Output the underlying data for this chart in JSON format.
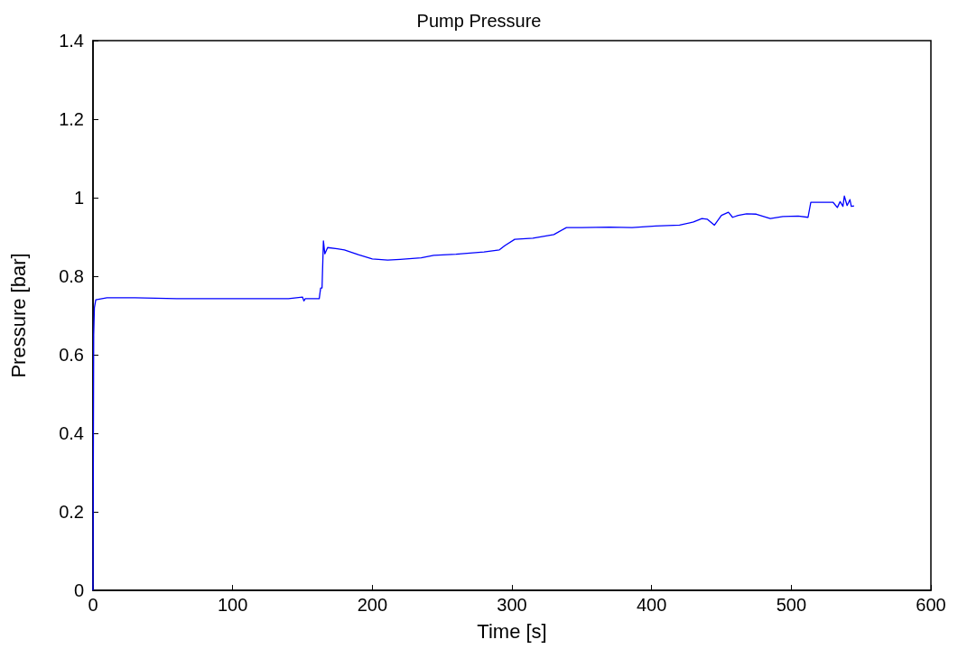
{
  "chart_data": {
    "type": "line",
    "title": "Pump Pressure",
    "xlabel": "Time [s]",
    "ylabel": "Pressure [bar]",
    "x": [
      0,
      0.5,
      1,
      2,
      10,
      30,
      60,
      100,
      140,
      150,
      151,
      152,
      160,
      162,
      163,
      164,
      165,
      166,
      168,
      175,
      180,
      190,
      200,
      211,
      220,
      235,
      244,
      260,
      280,
      291,
      295,
      302,
      315,
      330,
      339,
      350,
      370,
      386,
      403,
      420,
      430,
      436,
      440,
      445,
      450,
      455,
      458,
      462,
      468,
      475,
      485,
      494,
      505,
      512,
      514,
      520,
      530,
      533,
      535,
      537,
      538,
      540,
      542,
      543,
      545
    ],
    "series": [
      {
        "color": "#0000ff",
        "values": [
          0,
          0.65,
          0.72,
          0.74,
          0.745,
          0.745,
          0.743,
          0.743,
          0.743,
          0.747,
          0.737,
          0.743,
          0.743,
          0.743,
          0.77,
          0.77,
          0.89,
          0.857,
          0.873,
          0.87,
          0.867,
          0.855,
          0.844,
          0.841,
          0.843,
          0.847,
          0.853,
          0.856,
          0.862,
          0.867,
          0.878,
          0.894,
          0.897,
          0.906,
          0.924,
          0.924,
          0.925,
          0.924,
          0.928,
          0.93,
          0.938,
          0.947,
          0.945,
          0.93,
          0.955,
          0.963,
          0.95,
          0.955,
          0.959,
          0.958,
          0.947,
          0.952,
          0.953,
          0.95,
          0.988,
          0.988,
          0.988,
          0.975,
          0.99,
          0.978,
          1.004,
          0.98,
          0.995,
          0.978,
          0.979
        ]
      }
    ],
    "xlim": [
      0,
      600
    ],
    "xticks": [
      0,
      100,
      200,
      300,
      400,
      500,
      600
    ],
    "ylim": [
      0,
      1.4
    ],
    "yticks": [
      0,
      0.2,
      0.4,
      0.6,
      0.8,
      1,
      1.2,
      1.4
    ],
    "marker": "none",
    "line_style": "solid"
  }
}
